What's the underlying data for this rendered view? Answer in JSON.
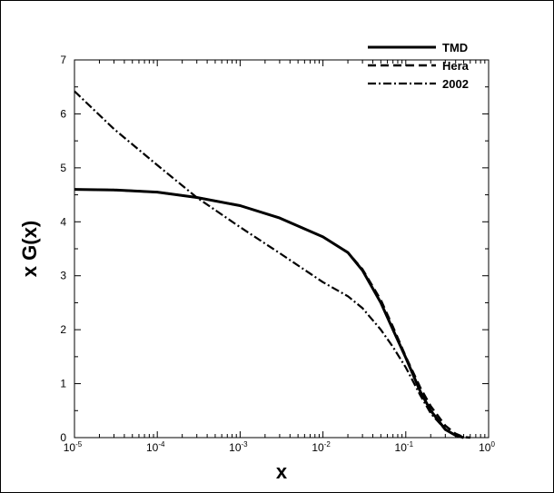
{
  "chart_data": {
    "type": "line",
    "title": "",
    "xlabel": "x",
    "ylabel": "x G(x)",
    "xscale": "log",
    "xlim": [
      1e-05,
      1
    ],
    "ylim": [
      0,
      7
    ],
    "x_ticks": [
      {
        "base": "10",
        "exp": "-5"
      },
      {
        "base": "10",
        "exp": "-4"
      },
      {
        "base": "10",
        "exp": "-3"
      },
      {
        "base": "10",
        "exp": "-2"
      },
      {
        "base": "10",
        "exp": "-1"
      },
      {
        "base": "10",
        "exp": "0"
      }
    ],
    "y_ticks": [
      "0",
      "1",
      "2",
      "3",
      "4",
      "5",
      "6",
      "7"
    ],
    "grid": false,
    "legend_position": "top-right",
    "series": [
      {
        "name": "TMD",
        "line_style": "solid",
        "x": [
          1e-05,
          3e-05,
          0.0001,
          0.0003,
          0.001,
          0.003,
          0.01,
          0.02,
          0.03,
          0.05,
          0.07,
          0.1,
          0.15,
          0.2,
          0.3,
          0.4,
          0.5
        ],
        "y": [
          4.6,
          4.59,
          4.55,
          4.45,
          4.3,
          4.07,
          3.72,
          3.43,
          3.1,
          2.5,
          2.0,
          1.48,
          0.85,
          0.5,
          0.15,
          0.04,
          0.0
        ]
      },
      {
        "name": "Hera",
        "line_style": "dashed",
        "x": [
          1e-05,
          3e-05,
          0.0001,
          0.0003,
          0.001,
          0.003,
          0.01,
          0.02,
          0.03,
          0.05,
          0.07,
          0.1,
          0.15,
          0.2,
          0.3,
          0.4,
          0.5,
          0.6
        ],
        "y": [
          4.6,
          4.59,
          4.55,
          4.45,
          4.3,
          4.07,
          3.72,
          3.43,
          3.12,
          2.55,
          2.05,
          1.5,
          0.92,
          0.58,
          0.22,
          0.07,
          0.01,
          0.0
        ]
      },
      {
        "name": "2002",
        "line_style": "dash-dot",
        "x": [
          1e-05,
          3e-05,
          0.0001,
          0.0003,
          0.001,
          0.003,
          0.01,
          0.02,
          0.03,
          0.05,
          0.07,
          0.1,
          0.15,
          0.2,
          0.3,
          0.4,
          0.5
        ],
        "y": [
          6.42,
          5.72,
          5.05,
          4.45,
          3.9,
          3.42,
          2.88,
          2.62,
          2.4,
          2.0,
          1.68,
          1.3,
          0.78,
          0.45,
          0.15,
          0.04,
          0.0
        ]
      }
    ]
  }
}
